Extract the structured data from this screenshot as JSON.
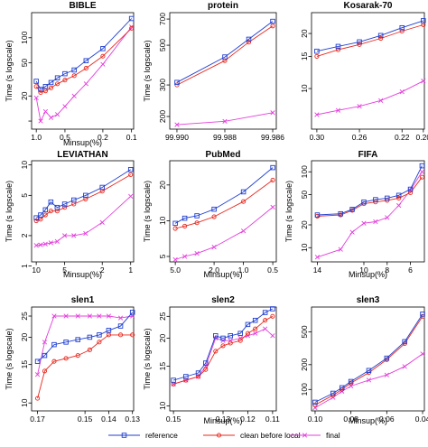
{
  "colors": {
    "reference": "#1f3fd0",
    "clean_before_local": "#e8281e",
    "final": "#e43fdc"
  },
  "legend": {
    "placement": "bottom",
    "entries": [
      {
        "label": "reference",
        "marker": "square",
        "color": "#1f3fd0"
      },
      {
        "label": "clean before local",
        "marker": "circle",
        "color": "#e8281e"
      },
      {
        "label": "final",
        "marker": "x",
        "color": "#e43fdc"
      }
    ]
  },
  "chart_data": [
    {
      "type": "line",
      "title": "BIBLE",
      "xlabel": "Minsup(%)",
      "ylabel": "Time (s logscale)",
      "xscale": "log",
      "xreversed": true,
      "yscale": "log",
      "xlim": [
        1.12,
        0.095
      ],
      "ylim": [
        8,
        200
      ],
      "xticks": [
        1.0,
        0.5,
        0.2,
        0.1
      ],
      "xticklabels": [
        "1.0",
        "0.5",
        "0.2",
        "0.1"
      ],
      "yticks": [
        10,
        20,
        50,
        100
      ],
      "yticklabels": [
        "",
        "20",
        "50",
        "100"
      ],
      "series": [
        {
          "name": "reference",
          "x": [
            1.0,
            0.9,
            0.8,
            0.7,
            0.6,
            0.5,
            0.4,
            0.3,
            0.2,
            0.1
          ],
          "y": [
            30,
            24,
            26,
            29,
            33,
            37,
            41,
            53,
            74,
            170
          ]
        },
        {
          "name": "clean before local",
          "x": [
            1.0,
            0.9,
            0.8,
            0.7,
            0.6,
            0.5,
            0.4,
            0.3,
            0.2,
            0.1
          ],
          "y": [
            26,
            22,
            23,
            25,
            28,
            31,
            35,
            43,
            60,
            130
          ]
        },
        {
          "name": "final",
          "x": [
            1.0,
            0.9,
            0.8,
            0.7,
            0.6,
            0.5,
            0.4,
            0.3,
            0.2,
            0.1
          ],
          "y": [
            19,
            10,
            13,
            11,
            12,
            15,
            20,
            28,
            48,
            135
          ]
        }
      ]
    },
    {
      "type": "line",
      "title": "protein",
      "xlabel": "",
      "ylabel": "Time (s logscale)",
      "xscale": "linear",
      "xreversed": true,
      "yscale": "log",
      "xlim": [
        99.9903,
        99.98585
      ],
      "ylim": [
        170,
        760
      ],
      "xticks": [
        99.99,
        99.988,
        99.986
      ],
      "xticklabels": [
        "99.990",
        "99.988",
        "99.986"
      ],
      "yticks": [
        200,
        300,
        500,
        700
      ],
      "yticklabels": [
        "200",
        "300",
        "500",
        "700"
      ],
      "series": [
        {
          "name": "reference",
          "x": [
            99.99,
            99.988,
            99.987,
            99.986
          ],
          "y": [
            310,
            430,
            540,
            680
          ]
        },
        {
          "name": "clean before local",
          "x": [
            99.99,
            99.988,
            99.987,
            99.986
          ],
          "y": [
            300,
            410,
            520,
            640
          ]
        },
        {
          "name": "final",
          "x": [
            99.99,
            99.988,
            99.986
          ],
          "y": [
            180,
            188,
            210
          ]
        }
      ]
    },
    {
      "type": "line",
      "title": "Kosarak-70",
      "xlabel": "",
      "ylabel": "",
      "xscale": "linear",
      "xreversed": true,
      "yscale": "log",
      "xlim": [
        0.305,
        0.199
      ],
      "ylim": [
        6,
        26
      ],
      "xticks": [
        0.3,
        0.26,
        0.22,
        0.2
      ],
      "xticklabels": [
        "0.30",
        "0.26",
        "0.22",
        "0.20"
      ],
      "yticks": [
        10,
        15,
        20
      ],
      "yticklabels": [
        "10",
        "15",
        "20"
      ],
      "series": [
        {
          "name": "reference",
          "x": [
            0.3,
            0.28,
            0.26,
            0.24,
            0.22,
            0.2
          ],
          "y": [
            16,
            17,
            18,
            19.5,
            21.5,
            23.5
          ]
        },
        {
          "name": "clean before local",
          "x": [
            0.3,
            0.28,
            0.26,
            0.24,
            0.22,
            0.2
          ],
          "y": [
            15,
            16.3,
            17.4,
            18.8,
            20.6,
            22.3
          ]
        },
        {
          "name": "final",
          "x": [
            0.3,
            0.28,
            0.26,
            0.24,
            0.22,
            0.2
          ],
          "y": [
            7.2,
            7.6,
            8.0,
            8.6,
            9.6,
            11.0
          ]
        }
      ]
    },
    {
      "type": "line",
      "title": "LEVIATHAN",
      "xlabel": "Minsup(%)",
      "ylabel": "Time (s logscale)",
      "xscale": "log",
      "xreversed": true,
      "yscale": "log",
      "xlim": [
        11.2,
        0.93
      ],
      "ylim": [
        1.1,
        11
      ],
      "xticks": [
        10,
        5,
        2,
        1
      ],
      "xticklabels": [
        "10",
        "5",
        "2",
        "1"
      ],
      "yticks": [
        1,
        2,
        5,
        10
      ],
      "yticklabels": [
        "1",
        "2",
        "5",
        "10"
      ],
      "series": [
        {
          "name": "reference",
          "x": [
            10,
            9,
            8,
            7,
            6,
            5,
            4,
            3,
            2,
            1
          ],
          "y": [
            3.0,
            3.2,
            3.6,
            4.3,
            3.8,
            4.1,
            4.5,
            5.0,
            6.0,
            9.0
          ]
        },
        {
          "name": "clean before local",
          "x": [
            10,
            9,
            8,
            7,
            6,
            5,
            4,
            3,
            2,
            1
          ],
          "y": [
            2.8,
            2.9,
            3.2,
            3.5,
            3.5,
            3.8,
            4.1,
            4.6,
            5.5,
            8.0
          ]
        },
        {
          "name": "final",
          "x": [
            10,
            9,
            8,
            7,
            6,
            5,
            4,
            3,
            2,
            1
          ],
          "y": [
            1.6,
            1.62,
            1.65,
            1.7,
            1.75,
            2.0,
            2.0,
            2.1,
            2.7,
            4.9
          ]
        }
      ]
    },
    {
      "type": "line",
      "title": "PubMed",
      "xlabel": "Minsup(%)",
      "ylabel": "Time (s logscale)",
      "xscale": "log",
      "xreversed": true,
      "yscale": "log",
      "xlim": [
        5.7,
        0.46
      ],
      "ylim": [
        4.5,
        32
      ],
      "xticks": [
        5.0,
        2.0,
        1.0,
        0.5
      ],
      "xticklabels": [
        "5.0",
        "2.0",
        "1.0",
        "0.5"
      ],
      "yticks": [
        5,
        10,
        20
      ],
      "yticklabels": [
        "5",
        "10",
        "20"
      ],
      "series": [
        {
          "name": "reference",
          "x": [
            5.0,
            4.0,
            3.0,
            2.0,
            1.0,
            0.5
          ],
          "y": [
            9.5,
            10.5,
            11.0,
            12.5,
            17.5,
            28.0
          ]
        },
        {
          "name": "clean before local",
          "x": [
            5.0,
            4.0,
            3.0,
            2.0,
            1.0,
            0.5
          ],
          "y": [
            8.6,
            9.0,
            9.6,
            10.8,
            14.5,
            22.0
          ]
        },
        {
          "name": "final",
          "x": [
            5.0,
            4.0,
            3.0,
            2.0,
            1.0,
            0.5
          ],
          "y": [
            4.7,
            5.0,
            5.3,
            6.0,
            8.2,
            13.0
          ]
        }
      ]
    },
    {
      "type": "line",
      "title": "FIFA",
      "xlabel": "Minsup(%)",
      "ylabel": "Time (s logscale)",
      "xscale": "linear",
      "xreversed": true,
      "yscale": "log",
      "xlim": [
        14.5,
        4.8
      ],
      "ylim": [
        6.5,
        140
      ],
      "xticks": [
        14,
        10,
        8,
        6
      ],
      "xticklabels": [
        "14",
        "10",
        "8",
        "6"
      ],
      "yticks": [
        10,
        20,
        50,
        100
      ],
      "yticklabels": [
        "10",
        "20",
        "50",
        "100"
      ],
      "series": [
        {
          "name": "reference",
          "x": [
            14,
            12,
            11,
            10,
            9,
            8,
            7,
            6,
            5
          ],
          "y": [
            27,
            28,
            32,
            40,
            43,
            45,
            49,
            59,
            120
          ]
        },
        {
          "name": "clean before local",
          "x": [
            14,
            12,
            11,
            10,
            9,
            8,
            7,
            6,
            5
          ],
          "y": [
            26,
            27,
            31,
            38,
            40,
            42,
            45,
            53,
            85
          ]
        },
        {
          "name": "final",
          "x": [
            14,
            12,
            11,
            10,
            9,
            8,
            7,
            6,
            5
          ],
          "y": [
            7.5,
            9.5,
            16,
            21,
            22,
            25,
            36,
            57,
            100
          ]
        }
      ]
    },
    {
      "type": "line",
      "title": "slen1",
      "xlabel": "",
      "ylabel": "Time (s logscale)",
      "xscale": "linear",
      "xreversed": true,
      "yscale": "log",
      "xlim": [
        0.1725,
        0.1295
      ],
      "ylim": [
        9.2,
        27.5
      ],
      "xticks": [
        0.17,
        0.15,
        0.14,
        0.13
      ],
      "xticklabels": [
        "0.17",
        "0.15",
        "0.14",
        "0.13"
      ],
      "yticks": [
        10,
        15,
        20,
        25
      ],
      "yticklabels": [
        "10",
        "15",
        "20",
        "25"
      ],
      "series": [
        {
          "name": "reference",
          "x": [
            0.17,
            0.167,
            0.163,
            0.158,
            0.153,
            0.148,
            0.144,
            0.14,
            0.135,
            0.13
          ],
          "y": [
            15.5,
            16.5,
            18.5,
            19,
            19.5,
            20,
            20.5,
            21.5,
            22.5,
            26
          ]
        },
        {
          "name": "clean before local",
          "x": [
            0.17,
            0.167,
            0.163,
            0.158,
            0.153,
            0.148,
            0.144,
            0.14,
            0.135,
            0.13
          ],
          "y": [
            10.5,
            14,
            15.5,
            16,
            16.5,
            17.5,
            19,
            20.5,
            20.5,
            20.5
          ]
        },
        {
          "name": "final",
          "x": [
            0.17,
            0.167,
            0.163,
            0.158,
            0.153,
            0.148,
            0.144,
            0.14,
            0.135,
            0.13
          ],
          "y": [
            13.5,
            19,
            25,
            25,
            25,
            25,
            25,
            25,
            24.5,
            25
          ]
        }
      ]
    },
    {
      "type": "line",
      "title": "slen2",
      "xlabel": "Minsup(%)",
      "ylabel": "Time (s logscale)",
      "xscale": "linear",
      "xreversed": true,
      "yscale": "log",
      "xlim": [
        0.1515,
        0.1085
      ],
      "ylim": [
        9.5,
        27.5
      ],
      "xticks": [
        0.15,
        0.13,
        0.12,
        0.11
      ],
      "xticklabels": [
        "0.15",
        "0.13",
        "0.12",
        "0.11"
      ],
      "yticks": [
        10,
        15,
        20,
        25
      ],
      "yticklabels": [
        "10",
        "15",
        "20",
        "25"
      ],
      "series": [
        {
          "name": "reference",
          "x": [
            0.15,
            0.145,
            0.14,
            0.137,
            0.133,
            0.13,
            0.127,
            0.123,
            0.12,
            0.117,
            0.113,
            0.11
          ],
          "y": [
            13,
            13.5,
            14,
            15.5,
            20.5,
            20,
            20.5,
            21,
            23,
            24,
            26,
            27
          ]
        },
        {
          "name": "clean before local",
          "x": [
            0.15,
            0.145,
            0.14,
            0.137,
            0.133,
            0.13,
            0.127,
            0.123,
            0.12,
            0.117,
            0.113,
            0.11
          ],
          "y": [
            12.5,
            13,
            13.5,
            14.5,
            17.5,
            18.5,
            19,
            19.5,
            21,
            22,
            24,
            25
          ]
        },
        {
          "name": "final",
          "x": [
            0.15,
            0.145,
            0.14,
            0.137,
            0.133,
            0.13,
            0.127,
            0.123,
            0.12,
            0.117,
            0.113,
            0.11
          ],
          "y": [
            12.5,
            13,
            13.5,
            15,
            20,
            19.5,
            19.5,
            20,
            20.5,
            21,
            22,
            20.5
          ]
        }
      ]
    },
    {
      "type": "line",
      "title": "slen3",
      "xlabel": "Minsup(%)",
      "ylabel": "",
      "xscale": "linear",
      "xreversed": true,
      "yscale": "log",
      "xlim": [
        0.102,
        0.039
      ],
      "ylim": [
        55,
        1000
      ],
      "xticks": [
        0.1,
        0.08,
        0.06,
        0.04
      ],
      "xticklabels": [
        "0.10",
        "0.08",
        "0.06",
        "0.04"
      ],
      "yticks": [
        100,
        200,
        500
      ],
      "yticklabels": [
        "100",
        "200",
        "500"
      ],
      "series": [
        {
          "name": "reference",
          "x": [
            0.1,
            0.09,
            0.085,
            0.08,
            0.07,
            0.06,
            0.05,
            0.04
          ],
          "y": [
            70,
            90,
            105,
            125,
            170,
            240,
            380,
            820
          ]
        },
        {
          "name": "clean before local",
          "x": [
            0.1,
            0.09,
            0.085,
            0.08,
            0.07,
            0.06,
            0.05,
            0.04
          ],
          "y": [
            65,
            85,
            100,
            120,
            160,
            230,
            360,
            770
          ]
        },
        {
          "name": "final",
          "x": [
            0.1,
            0.09,
            0.085,
            0.08,
            0.07,
            0.06,
            0.05,
            0.04
          ],
          "y": [
            60,
            80,
            95,
            110,
            130,
            150,
            190,
            270
          ]
        }
      ]
    }
  ]
}
